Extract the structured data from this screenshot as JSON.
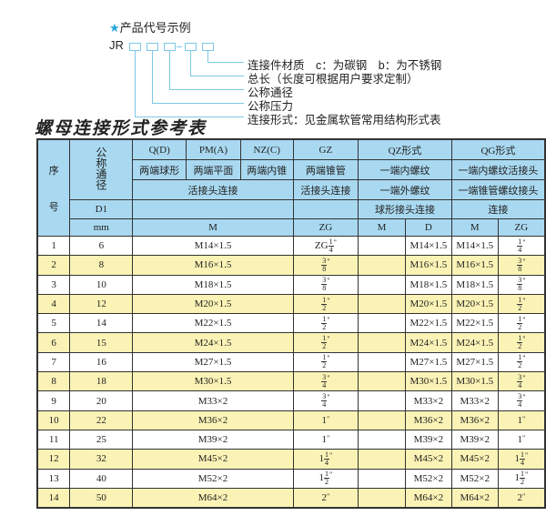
{
  "example": {
    "title": "产品代号示例",
    "star_icon": "star-icon",
    "prefix": "JR",
    "labels": [
      "连接件材质　c：为碳钢　b：为不锈钢",
      "总长（长度可根据用户要求定制）",
      "公称通径",
      "公称压力",
      "连接形式：见金属软管常用结构形式表"
    ]
  },
  "table_title": "螺母连接形式参考表",
  "header": {
    "serial": "序\n\n号",
    "serial_top": "序",
    "serial_bottom": "号",
    "nominal": "公称通径",
    "qd": "Q(D)",
    "pm": "PM(A)",
    "nz": "NZ(C)",
    "gz": "GZ",
    "qz": "QZ形式",
    "qg": "QG形式",
    "qd_desc": "两端球形",
    "pm_desc": "两端平面",
    "nz_desc": "两端内锥",
    "gz_desc": "两端锥管",
    "qz_desc": "一端内螺纹",
    "qg_desc": "一端内螺纹活接头",
    "union_conn": "活接头连接",
    "gz_conn": "活接头连接",
    "qz_desc2": "一端外螺纹",
    "qg_desc2": "一端锥管螺纹接头",
    "d1": "D1",
    "qz_desc3": "球形接头连接",
    "qg_desc3": "连接",
    "mm": "mm",
    "m": "M",
    "zg": "ZG",
    "qz_m": "M",
    "qz_d": "D",
    "qg_m": "M",
    "qg_zg": "ZG"
  },
  "colors": {
    "header_bg": "#a9d9f1",
    "alt_row_bg": "#fbf3b6",
    "accent": "#2aa7d8"
  },
  "rows": [
    {
      "no": "1",
      "dn": "6",
      "m": "M14×1.5",
      "zg": {
        "pre": "ZG",
        "int": "",
        "num": "1",
        "den": "4"
      },
      "qz_m": "",
      "qz_d": "M14×1.5",
      "qg_m": "M14×1.5",
      "qg_zg": {
        "int": "",
        "num": "1",
        "den": "4"
      }
    },
    {
      "no": "2",
      "dn": "8",
      "m": "M16×1.5",
      "zg": {
        "pre": "",
        "int": "",
        "num": "3",
        "den": "8"
      },
      "qz_m": "",
      "qz_d": "M16×1.5",
      "qg_m": "M16×1.5",
      "qg_zg": {
        "int": "",
        "num": "3",
        "den": "8"
      }
    },
    {
      "no": "3",
      "dn": "10",
      "m": "M18×1.5",
      "zg": {
        "pre": "",
        "int": "",
        "num": "3",
        "den": "8"
      },
      "qz_m": "",
      "qz_d": "M18×1.5",
      "qg_m": "M18×1.5",
      "qg_zg": {
        "int": "",
        "num": "3",
        "den": "8"
      }
    },
    {
      "no": "4",
      "dn": "12",
      "m": "M20×1.5",
      "zg": {
        "pre": "",
        "int": "",
        "num": "1",
        "den": "2"
      },
      "qz_m": "",
      "qz_d": "M20×1.5",
      "qg_m": "M20×1.5",
      "qg_zg": {
        "int": "",
        "num": "1",
        "den": "2"
      }
    },
    {
      "no": "5",
      "dn": "14",
      "m": "M22×1.5",
      "zg": {
        "pre": "",
        "int": "",
        "num": "1",
        "den": "2"
      },
      "qz_m": "",
      "qz_d": "M22×1.5",
      "qg_m": "M22×1.5",
      "qg_zg": {
        "int": "",
        "num": "1",
        "den": "2"
      }
    },
    {
      "no": "6",
      "dn": "15",
      "m": "M24×1.5",
      "zg": {
        "pre": "",
        "int": "",
        "num": "1",
        "den": "2"
      },
      "qz_m": "",
      "qz_d": "M24×1.5",
      "qg_m": "M24×1.5",
      "qg_zg": {
        "int": "",
        "num": "1",
        "den": "2"
      }
    },
    {
      "no": "7",
      "dn": "16",
      "m": "M27×1.5",
      "zg": {
        "pre": "",
        "int": "",
        "num": "1",
        "den": "2"
      },
      "qz_m": "",
      "qz_d": "M27×1.5",
      "qg_m": "M27×1.5",
      "qg_zg": {
        "int": "",
        "num": "1",
        "den": "2"
      }
    },
    {
      "no": "8",
      "dn": "18",
      "m": "M30×1.5",
      "zg": {
        "pre": "",
        "int": "",
        "num": "3",
        "den": "4"
      },
      "qz_m": "",
      "qz_d": "M30×1.5",
      "qg_m": "M30×1.5",
      "qg_zg": {
        "int": "",
        "num": "3",
        "den": "4"
      }
    },
    {
      "no": "9",
      "dn": "20",
      "m": "M33×2",
      "zg": {
        "pre": "",
        "int": "",
        "num": "3",
        "den": "4"
      },
      "qz_m": "",
      "qz_d": "M33×2",
      "qg_m": "M33×2",
      "qg_zg": {
        "int": "",
        "num": "3",
        "den": "4"
      }
    },
    {
      "no": "10",
      "dn": "22",
      "m": "M36×2",
      "zg": {
        "pre": "",
        "int": "1",
        "num": "",
        "den": ""
      },
      "qz_m": "",
      "qz_d": "M36×2",
      "qg_m": "M36×2",
      "qg_zg": {
        "int": "1",
        "num": "",
        "den": ""
      }
    },
    {
      "no": "11",
      "dn": "25",
      "m": "M39×2",
      "zg": {
        "pre": "",
        "int": "1",
        "num": "",
        "den": ""
      },
      "qz_m": "",
      "qz_d": "M39×2",
      "qg_m": "M39×2",
      "qg_zg": {
        "int": "1",
        "num": "",
        "den": ""
      }
    },
    {
      "no": "12",
      "dn": "32",
      "m": "M45×2",
      "zg": {
        "pre": "",
        "int": "1",
        "num": "1",
        "den": "4"
      },
      "qz_m": "",
      "qz_d": "M45×2",
      "qg_m": "M45×2",
      "qg_zg": {
        "int": "1",
        "num": "1",
        "den": "4"
      }
    },
    {
      "no": "13",
      "dn": "40",
      "m": "M52×2",
      "zg": {
        "pre": "",
        "int": "1",
        "num": "1",
        "den": "2"
      },
      "qz_m": "",
      "qz_d": "M52×2",
      "qg_m": "M52×2",
      "qg_zg": {
        "int": "1",
        "num": "1",
        "den": "2"
      }
    },
    {
      "no": "14",
      "dn": "50",
      "m": "M64×2",
      "zg": {
        "pre": "",
        "int": "2",
        "num": "",
        "den": ""
      },
      "qz_m": "",
      "qz_d": "M64×2",
      "qg_m": "M64×2",
      "qg_zg": {
        "int": "2",
        "num": "",
        "den": ""
      }
    }
  ],
  "inch_mark": "\""
}
